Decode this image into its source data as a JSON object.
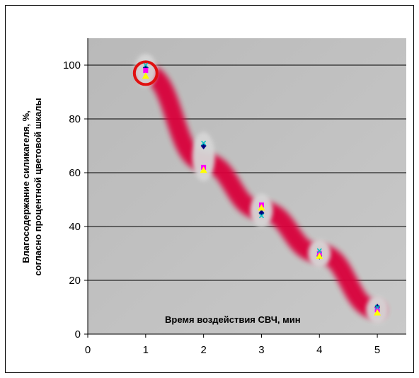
{
  "chart_data": {
    "type": "scatter",
    "xlabel": "Время воздействия СВЧ, мин",
    "ylabel": [
      "Влагосодержание силикагеля, %,",
      "согласно процентной цветовой шкалы"
    ],
    "xlim": [
      0,
      5.5
    ],
    "ylim": [
      0,
      110
    ],
    "xticks": [
      0,
      1,
      2,
      3,
      4,
      5
    ],
    "yticks": [
      0,
      20,
      40,
      60,
      80,
      100
    ],
    "grid": "horizontal",
    "legend": "none",
    "trend_band": [
      [
        1,
        97
      ],
      [
        2,
        64
      ],
      [
        3,
        46
      ],
      [
        4,
        30
      ],
      [
        5,
        9
      ]
    ],
    "series": [
      {
        "marker": "diamond",
        "color": "#000080",
        "x": [
          1,
          2,
          3,
          4,
          5
        ],
        "y": [
          99,
          70,
          45,
          29,
          10
        ]
      },
      {
        "marker": "square",
        "color": "#ff00ff",
        "x": [
          1,
          2,
          3,
          4,
          5
        ],
        "y": [
          98,
          62,
          48,
          30,
          9
        ]
      },
      {
        "marker": "triangle",
        "color": "#ffff00",
        "x": [
          1,
          2,
          3,
          4,
          5
        ],
        "y": [
          96,
          61,
          47,
          29,
          8
        ]
      },
      {
        "marker": "x",
        "color": "#00c0c0",
        "x": [
          1,
          2,
          3,
          4,
          5
        ],
        "y": [
          100,
          71,
          44,
          31,
          10
        ]
      }
    ],
    "highlight": {
      "x": 1,
      "y": 97,
      "color": "#e01010"
    }
  }
}
